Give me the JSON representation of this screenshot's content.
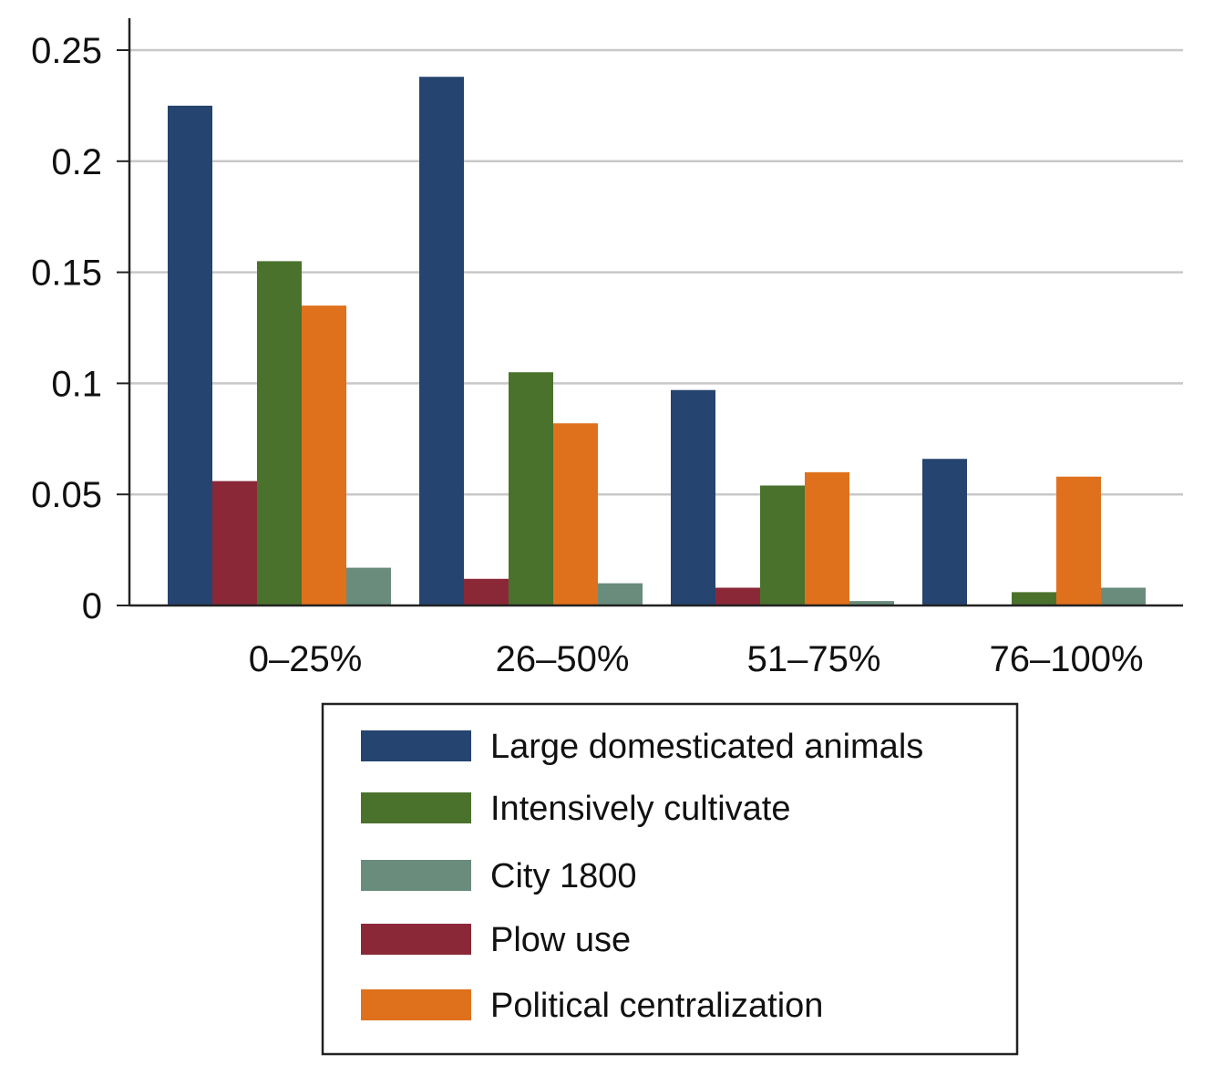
{
  "chart_data": {
    "type": "bar",
    "title": "",
    "xlabel": "",
    "ylabel": "",
    "categories": [
      "0–25%",
      "26–50%",
      "51–75%",
      "76–100%"
    ],
    "ylim": [
      0,
      0.25
    ],
    "yticks": [
      {
        "value": 0,
        "label": "0"
      },
      {
        "value": 0.05,
        "label": "0.05"
      },
      {
        "value": 0.1,
        "label": "0.1"
      },
      {
        "value": 0.15,
        "label": "0.15"
      },
      {
        "value": 0.2,
        "label": "0.2"
      },
      {
        "value": 0.25,
        "label": "0.25"
      }
    ],
    "grid": true,
    "legend_position": "bottom",
    "series": [
      {
        "name": "Large domesticated animals",
        "color": "#25446f",
        "values": [
          0.225,
          0.238,
          0.097,
          0.066
        ]
      },
      {
        "name": "Plow use",
        "color": "#8b2838",
        "values": [
          0.056,
          0.012,
          0.008,
          0.0
        ]
      },
      {
        "name": "Intensively cultivate",
        "color": "#4b722c",
        "values": [
          0.155,
          0.105,
          0.054,
          0.006
        ]
      },
      {
        "name": "Political centralization",
        "color": "#e0711c",
        "values": [
          0.135,
          0.082,
          0.06,
          0.058
        ]
      },
      {
        "name": "City 1800",
        "color": "#698c7c",
        "values": [
          0.017,
          0.01,
          0.002,
          0.008
        ]
      }
    ],
    "legend_order": [
      "Large domesticated animals",
      "Intensively cultivate",
      "City 1800",
      "Plow use",
      "Political centralization"
    ]
  }
}
